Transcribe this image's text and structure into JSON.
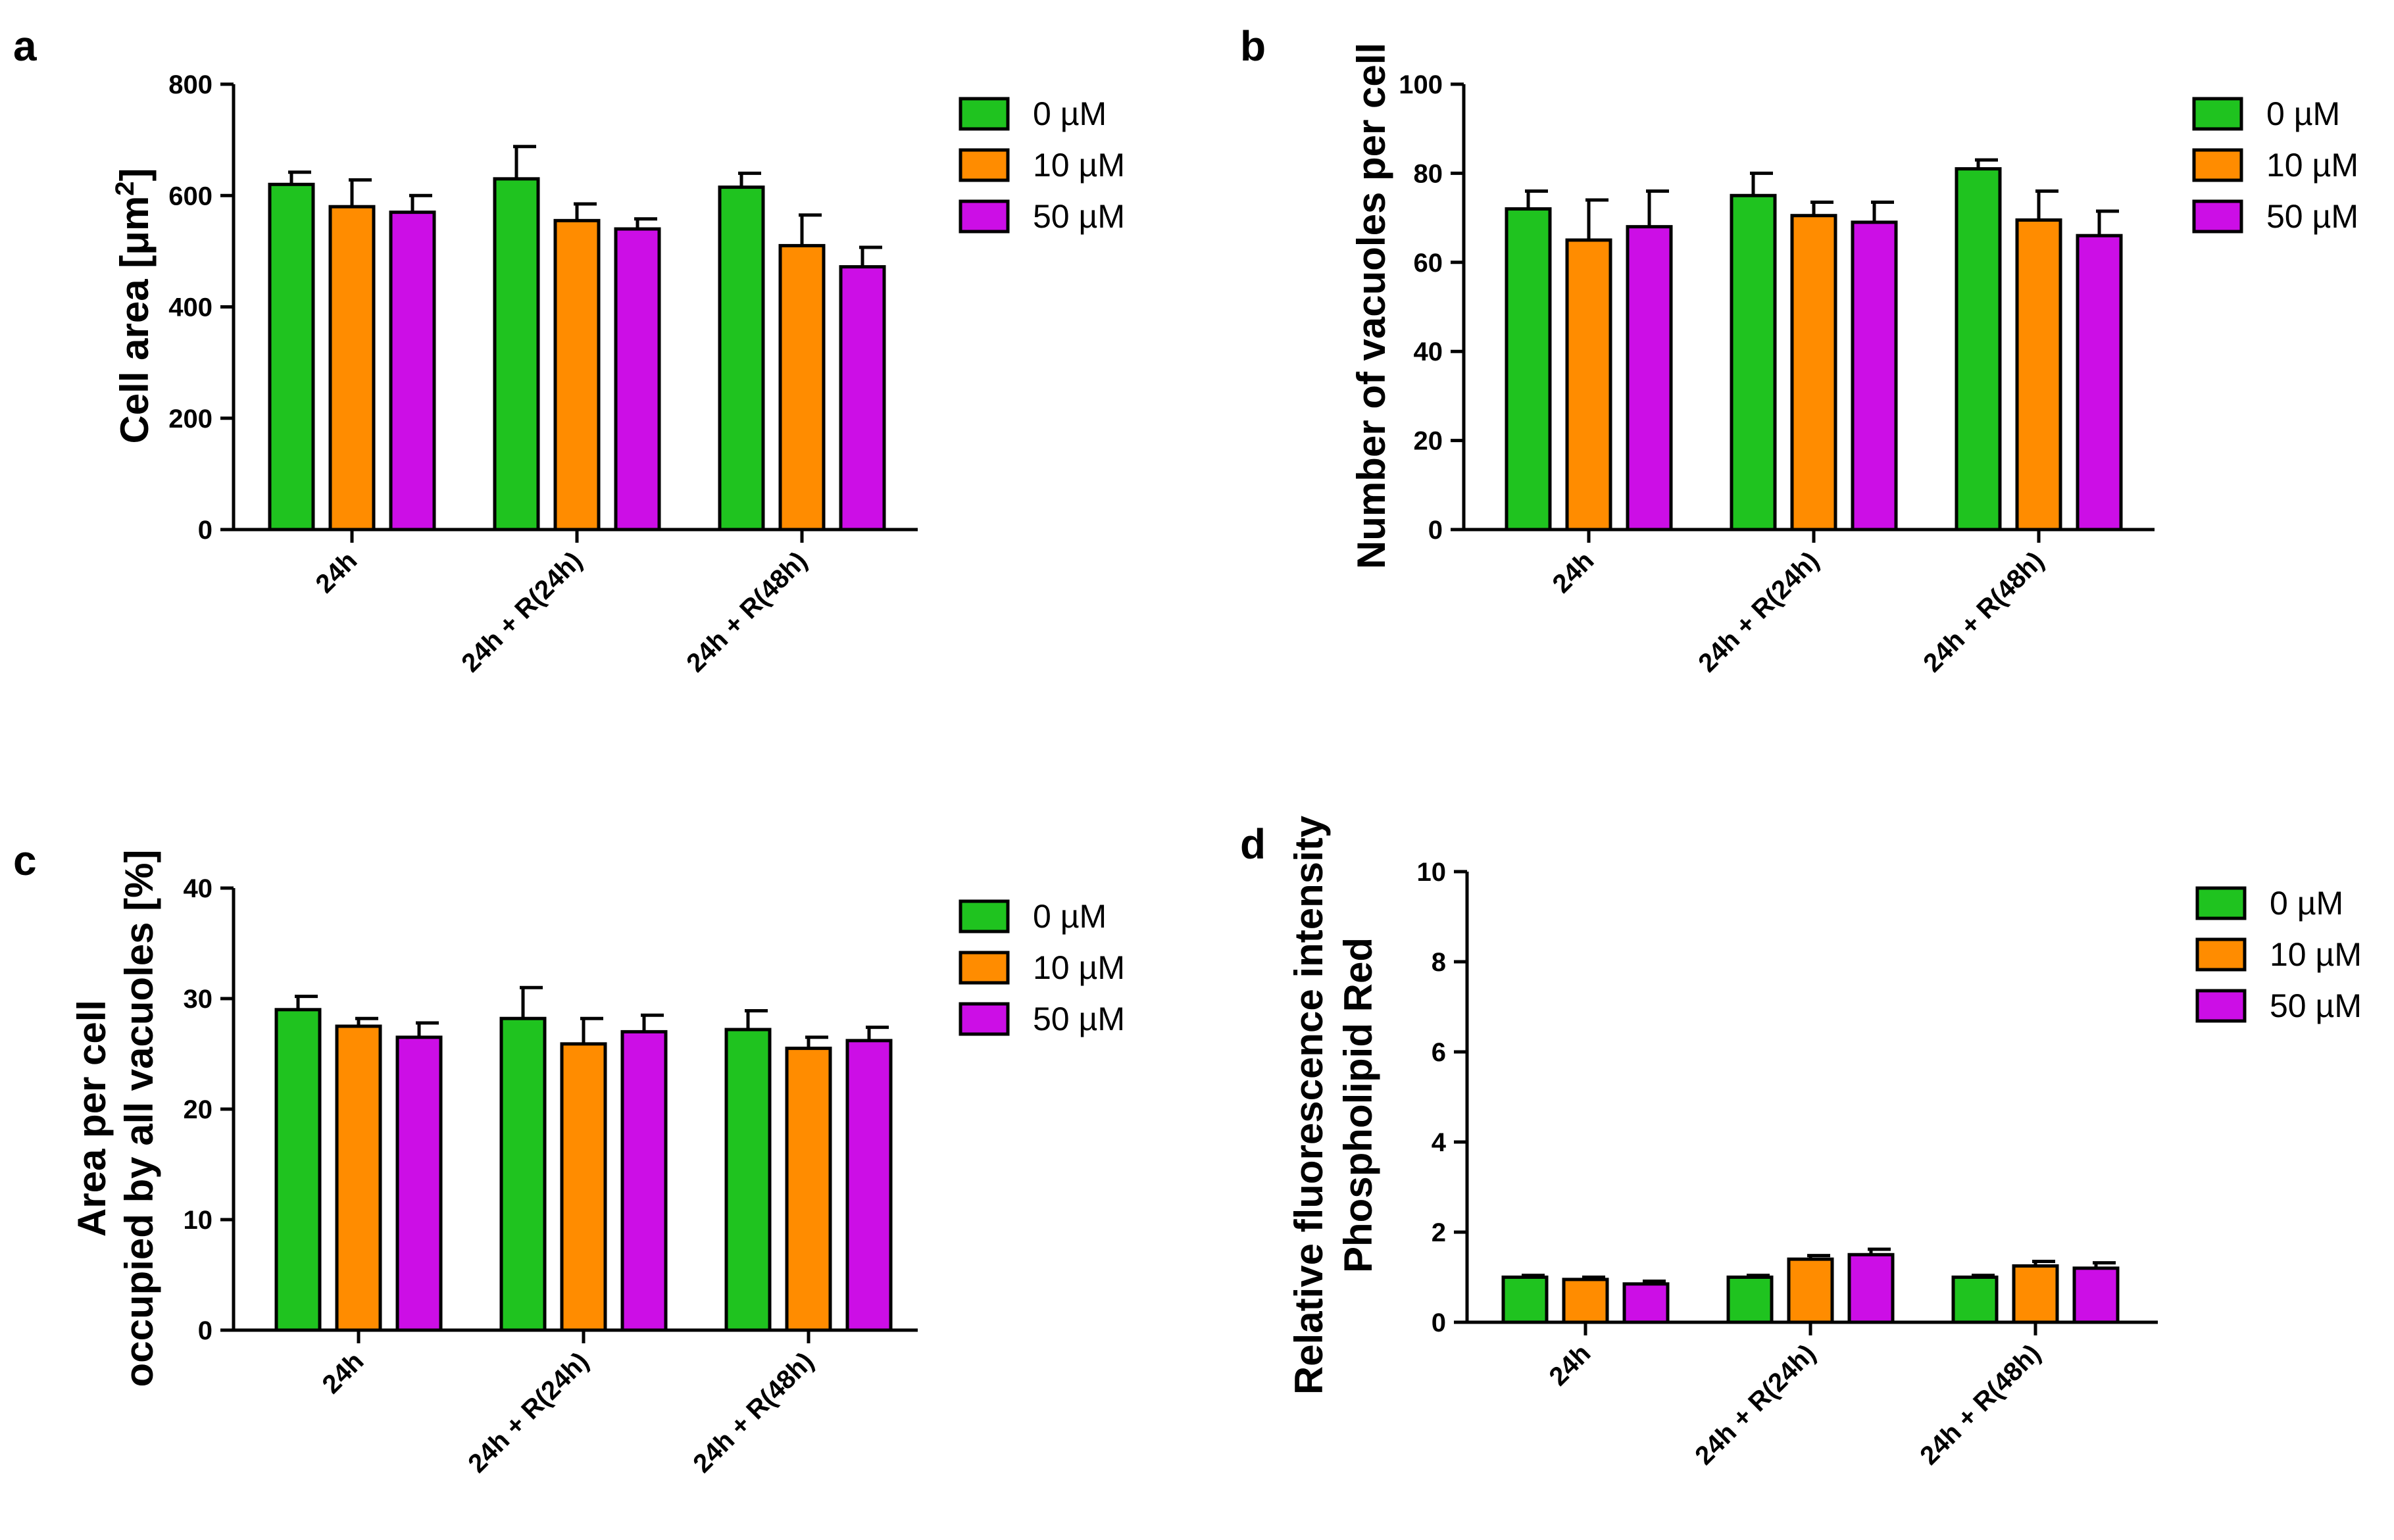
{
  "colors": {
    "green": "#1fc31f",
    "orange": "#ff8c00",
    "magenta": "#cc0ee6",
    "outline": "#000000"
  },
  "chart_data": [
    {
      "type": "bar",
      "panel": "a",
      "ylabel": "Cell area [μm²]",
      "ylabel_main": "Cell area [μm",
      "ylabel_sup": "2",
      "ylabel_close": "]",
      "ylim": [
        0,
        800
      ],
      "yticks": [
        0,
        200,
        400,
        600,
        800
      ],
      "categories": [
        "24h",
        "24h + R(24h)",
        "24h + R(48h)"
      ],
      "series": [
        {
          "name": "0 µM",
          "values": [
            620,
            630,
            615
          ],
          "errors": [
            22,
            58,
            25
          ]
        },
        {
          "name": "10 µM",
          "values": [
            580,
            555,
            510
          ],
          "errors": [
            48,
            30,
            55
          ]
        },
        {
          "name": "50 µM",
          "values": [
            570,
            540,
            472
          ],
          "errors": [
            30,
            18,
            35
          ]
        }
      ]
    },
    {
      "type": "bar",
      "panel": "b",
      "ylabel": "Number of vacuoles per cell",
      "ylim": [
        0,
        100
      ],
      "yticks": [
        0,
        20,
        40,
        60,
        80,
        100
      ],
      "categories": [
        "24h",
        "24h + R(24h)",
        "24h + R(48h)"
      ],
      "series": [
        {
          "name": "0 µM",
          "values": [
            72,
            75,
            81
          ],
          "errors": [
            4,
            5,
            2
          ]
        },
        {
          "name": "10 µM",
          "values": [
            65,
            70.5,
            69.5
          ],
          "errors": [
            9,
            3,
            6.5
          ]
        },
        {
          "name": "50 µM",
          "values": [
            68,
            69,
            66
          ],
          "errors": [
            8,
            4.5,
            5.5
          ]
        }
      ]
    },
    {
      "type": "bar",
      "panel": "c",
      "ylabel": "Area per cell occupied by all vacuoles [%]",
      "ylabel_line1": "Area per cell",
      "ylabel_line2": "occupied by all vacuoles [%]",
      "ylim": [
        0,
        40
      ],
      "yticks": [
        0,
        10,
        20,
        30,
        40
      ],
      "categories": [
        "24h",
        "24h + R(24h)",
        "24h + R(48h)"
      ],
      "series": [
        {
          "name": "0 µM",
          "values": [
            29,
            28.2,
            27.2
          ],
          "errors": [
            1.2,
            2.8,
            1.7
          ]
        },
        {
          "name": "10 µM",
          "values": [
            27.5,
            25.9,
            25.5
          ],
          "errors": [
            0.7,
            2.3,
            1.0
          ]
        },
        {
          "name": "50 µM",
          "values": [
            26.5,
            27,
            26.2
          ],
          "errors": [
            1.3,
            1.5,
            1.2
          ]
        }
      ]
    },
    {
      "type": "bar",
      "panel": "d",
      "ylabel": "Relative fluorescence intensity Phospholipid Red",
      "ylabel_line1": "Relative fluorescence intensity",
      "ylabel_line2": "Phospholipid Red",
      "ylim": [
        0,
        10
      ],
      "yticks": [
        0,
        2,
        4,
        6,
        8,
        10
      ],
      "categories": [
        "24h",
        "24h + R(24h)",
        "24h + R(48h)"
      ],
      "series": [
        {
          "name": "0 µM",
          "values": [
            1.0,
            1.0,
            1.0
          ],
          "errors": [
            0.04,
            0.04,
            0.04
          ]
        },
        {
          "name": "10 µM",
          "values": [
            0.95,
            1.4,
            1.25
          ],
          "errors": [
            0.05,
            0.08,
            0.1
          ]
        },
        {
          "name": "50 µM",
          "values": [
            0.85,
            1.5,
            1.2
          ],
          "errors": [
            0.06,
            0.12,
            0.12
          ]
        }
      ]
    }
  ]
}
